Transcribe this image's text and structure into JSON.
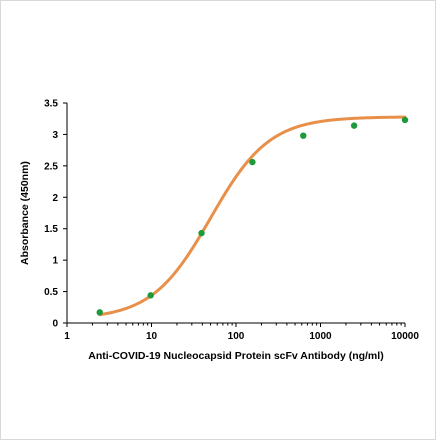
{
  "chart_data": {
    "type": "line",
    "title": "",
    "xlabel": "Anti-COVID-19  Nucleocapsid Protein scFv Antibody (ng/ml)",
    "ylabel": "Absorbance (450nm)",
    "x_scale": "log",
    "xlim": [
      1,
      10000
    ],
    "ylim": [
      0,
      3.5
    ],
    "x_ticks": [
      1,
      10,
      100,
      1000,
      10000
    ],
    "x_tick_labels": [
      "1",
      "10",
      "100",
      "1000",
      "10000"
    ],
    "y_ticks": [
      0,
      0.5,
      1,
      1.5,
      2,
      2.5,
      3,
      3.5
    ],
    "y_tick_labels": [
      "0",
      "0.5",
      "1",
      "1.5",
      "2",
      "2.5",
      "3",
      "3.5"
    ],
    "grid": false,
    "legend": "none",
    "series": [
      {
        "points": [
          {
            "x": 2.44,
            "y": 0.17
          },
          {
            "x": 9.77,
            "y": 0.44
          },
          {
            "x": 39.1,
            "y": 1.43
          },
          {
            "x": 156.3,
            "y": 2.56
          },
          {
            "x": 625,
            "y": 2.98
          },
          {
            "x": 2500,
            "y": 3.14
          },
          {
            "x": 10000,
            "y": 3.23
          }
        ],
        "curve": {
          "model": "4PL",
          "bottom": 0.06,
          "top": 3.28,
          "ec50": 50,
          "hill": 1.25
        }
      }
    ],
    "colors": {
      "curve": "#e8904a",
      "marker": "#1f9a3a",
      "axis": "#000000"
    }
  }
}
